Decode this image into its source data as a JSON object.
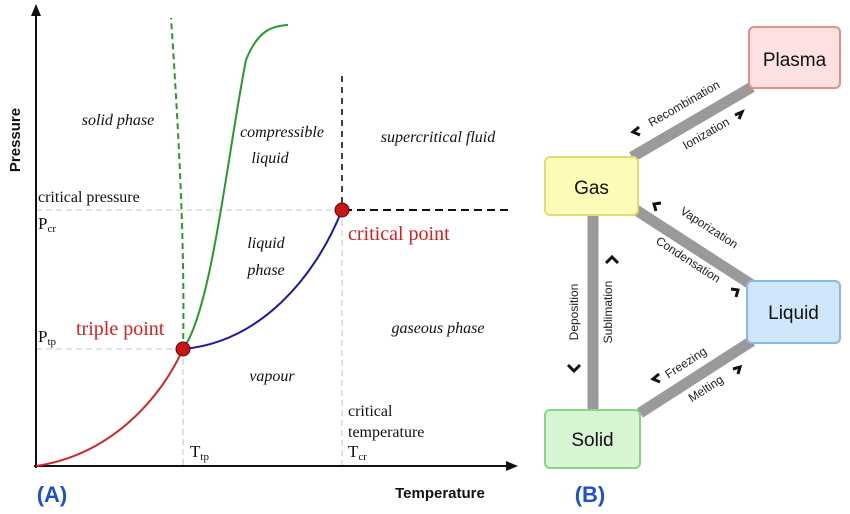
{
  "phase_diagram": {
    "panel_label": "(A)",
    "axes": {
      "y_label": "Pressure",
      "x_label": "Temperature"
    },
    "regions": {
      "solid": "solid phase",
      "compressible_line1": "compressible",
      "compressible_line2": "liquid",
      "supercritical": "supercritical fluid",
      "liquid_line1": "liquid",
      "liquid_line2": "phase",
      "gaseous": "gaseous phase",
      "vapour": "vapour"
    },
    "labels": {
      "critical_pressure": "critical pressure",
      "p_cr_main": "P",
      "p_cr_sub": "cr",
      "p_tp_main": "P",
      "p_tp_sub": "tp",
      "t_tp_main": "T",
      "t_tp_sub": "tp",
      "critical_temperature_line1": "critical",
      "critical_temperature_line2": "temperature",
      "t_cr_main": "T",
      "t_cr_sub": "cr",
      "triple_point": "triple point",
      "critical_point": "critical point"
    },
    "colors": {
      "sublimation_curve": "#cc2a2a",
      "vaporization_curve": "#1a1aa8",
      "melting_curve": "#2a9a2a",
      "point_fill": "#c81414",
      "point_label": "#d42020",
      "panel_label": "#2050d0"
    }
  },
  "state_diagram": {
    "panel_label": "(B)",
    "nodes": {
      "plasma": {
        "label": "Plasma",
        "fill": "#fde0e0",
        "stroke": "#e88c8c"
      },
      "gas": {
        "label": "Gas",
        "fill": "#fdfbb8",
        "stroke": "#e2dc6a"
      },
      "liquid": {
        "label": "Liquid",
        "fill": "#cfe6fb",
        "stroke": "#8bb8e6"
      },
      "solid": {
        "label": "Solid",
        "fill": "#d7f5d3",
        "stroke": "#8ad487"
      }
    },
    "transitions": {
      "recombination": "Recombination",
      "ionization": "Ionization",
      "vaporization": "Vaporization",
      "condensation": "Condensation",
      "deposition": "Deposition",
      "sublimation": "Sublimation",
      "freezing": "Freezing",
      "melting": "Melting"
    },
    "connector_color": "#9a9a9a"
  }
}
